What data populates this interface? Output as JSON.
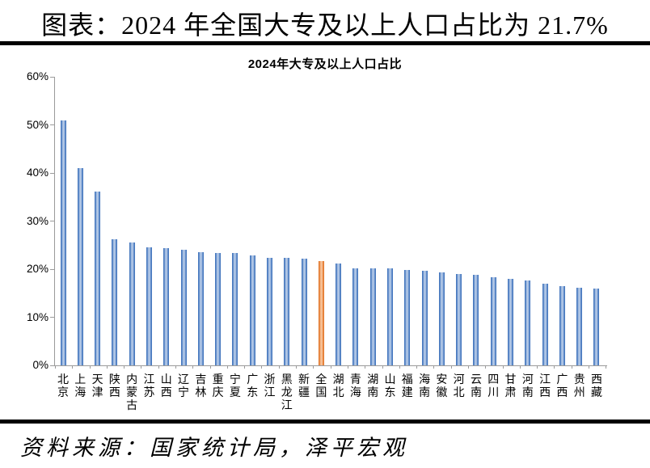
{
  "header": {
    "title": "图表：2024 年全国大专及以上人口占比为 21.7%"
  },
  "footer": {
    "source": "资料来源：国家统计局，泽平宏观"
  },
  "chart_data": {
    "type": "bar",
    "title": "2024年大专及以上人口占比",
    "categories": [
      "北京",
      "上海",
      "天津",
      "陕西",
      "内蒙古",
      "江苏",
      "山西",
      "辽宁",
      "吉林",
      "重庆",
      "宁夏",
      "广东",
      "浙江",
      "黑龙江",
      "新疆",
      "全国",
      "湖北",
      "青海",
      "湖南",
      "山东",
      "福建",
      "海南",
      "安徽",
      "河北",
      "云南",
      "四川",
      "甘肃",
      "河南",
      "江西",
      "广西",
      "贵州",
      "西藏"
    ],
    "values": [
      51.0,
      41.0,
      36.2,
      26.2,
      25.6,
      24.6,
      24.4,
      24.0,
      23.6,
      23.4,
      23.3,
      22.9,
      22.4,
      22.3,
      22.2,
      21.7,
      21.2,
      20.2,
      20.2,
      20.1,
      19.8,
      19.7,
      19.4,
      19.0,
      18.9,
      18.4,
      18.0,
      17.7,
      16.9,
      16.5,
      16.1,
      16.0
    ],
    "unit": "%",
    "highlight_category": "全国",
    "highlight_index": 15,
    "y_ticks": [
      "0%",
      "10%",
      "20%",
      "30%",
      "40%",
      "50%",
      "60%"
    ],
    "ylim": [
      0,
      60
    ],
    "y_tick_step": 10,
    "grid": false,
    "legend": "none",
    "bar_color": "#4577be",
    "bar_color_light": "#c0d2ea",
    "highlight_color": "#e2772b",
    "highlight_color_light": "#f8cca8",
    "axis_color": "#9b9b9b",
    "text_color": "#000000",
    "background_color": "#ffffff"
  }
}
